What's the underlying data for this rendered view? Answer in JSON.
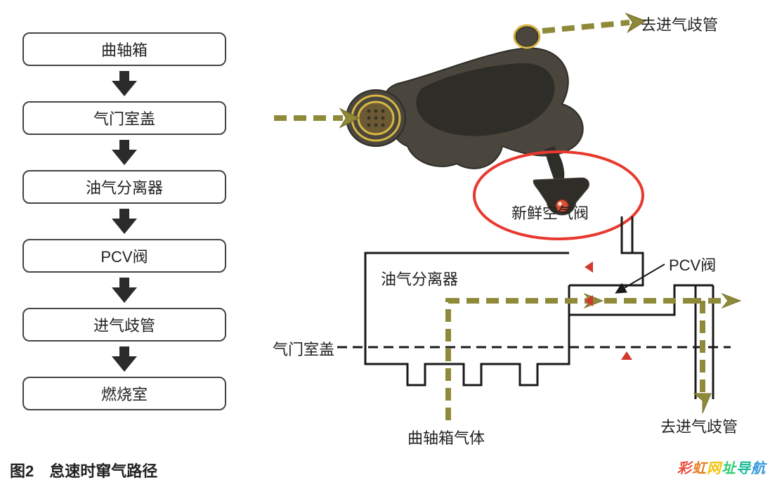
{
  "caption": "图2　怠速时窜气路径",
  "watermark": "彩虹网址导航",
  "flowchart": {
    "boxes": [
      "曲轴箱",
      "气门室盖",
      "油气分离器",
      "PCV阀",
      "进气歧管",
      "燃烧室"
    ],
    "box_border_color": "#444444",
    "box_radius": 10,
    "box_font_size": 22,
    "arrow_color": "#2b2b2b",
    "arrow_head_w": 36,
    "arrow_head_h": 22,
    "arrow_shaft_w": 14,
    "arrow_shaft_h": 14
  },
  "diagram": {
    "labels": {
      "top_right": "去进气歧管",
      "fresh_air_valve": "新鲜空气阀",
      "oil_separator": "油气分离器",
      "pcv_valve": "PCV阀",
      "valve_cover": "气门室盖",
      "crankcase_gas": "曲轴箱气体",
      "bottom_right": "去进气歧管"
    },
    "colors": {
      "olive": "#8f8a3a",
      "olive_dark": "#7c7630",
      "black": "#1a1a1a",
      "red_ellipse": "#e8392f",
      "highlight_ring": "#d8b642",
      "part_dark": "#2f2d28",
      "part_mid": "#4a463d",
      "red_dot": "#d94f33",
      "red_tri": "#d13a2e"
    },
    "stroke_widths": {
      "schematic_line": 3,
      "dash_line": 3,
      "olive_arrow": 8,
      "red_ellipse": 4,
      "highlight_ring": 3
    },
    "dash_pattern": "14 8",
    "olive_dash_pattern": "18 10"
  }
}
